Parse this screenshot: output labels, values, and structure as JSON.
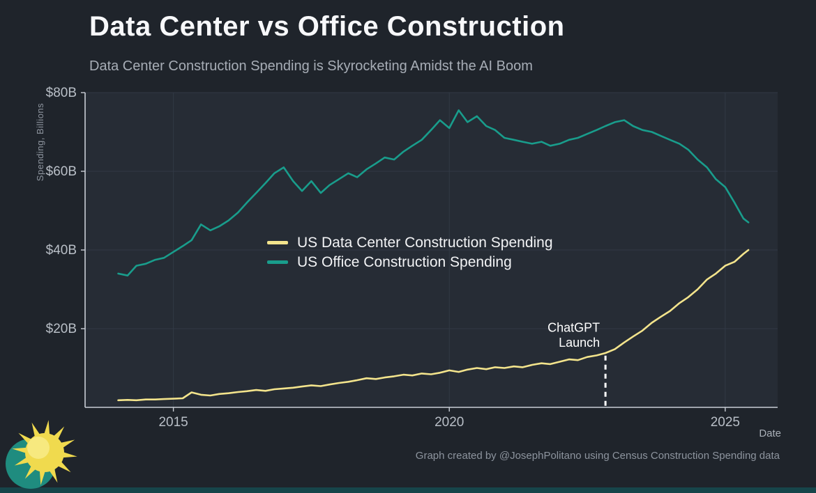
{
  "page": {
    "title": "Data Center vs Office Construction",
    "subtitle": "Data Center Construction Spending is Skyrocketing Amidst the AI Boom",
    "footer": "Graph created by @JosephPolitano using Census Construction Spending data",
    "colors": {
      "background": "#1f242b",
      "plot_background": "#262c35",
      "grid": "#313945",
      "axis": "#c9ced6",
      "tick_text": "#b9bfc7",
      "data_center_line": "#f3e48c",
      "office_line": "#199d8c",
      "annotation": "#ffffff",
      "logo_sun": "#f0da4e",
      "logo_sun_highlight": "#f7e97f",
      "logo_teal": "#1f8c7f"
    }
  },
  "chart_data": {
    "type": "line",
    "title": "Data Center vs Office Construction",
    "subtitle": "Data Center Construction Spending is Skyrocketing Amidst the AI Boom",
    "xlabel": "Date",
    "ylabel": "Spending, Billions",
    "xlim": [
      2013.4,
      2025.95
    ],
    "ylim": [
      0,
      80
    ],
    "grid": true,
    "legend_position": "inside-center-left",
    "x_ticks": [
      {
        "value": 2015,
        "label": "2015"
      },
      {
        "value": 2020,
        "label": "2020"
      },
      {
        "value": 2025,
        "label": "2025"
      }
    ],
    "y_ticks": [
      {
        "value": 20,
        "label": "$20B"
      },
      {
        "value": 40,
        "label": "$40B"
      },
      {
        "value": 60,
        "label": "$60B"
      },
      {
        "value": 80,
        "label": "$80B"
      }
    ],
    "annotation": {
      "label_lines": [
        "ChatGPT",
        "Launch"
      ],
      "x": 2022.83,
      "line_y_bottom": 0.4,
      "line_y_top": 13.6,
      "text_y": [
        19.2,
        15.4
      ]
    },
    "x": [
      2014.0,
      2014.17,
      2014.33,
      2014.5,
      2014.67,
      2014.83,
      2015.0,
      2015.17,
      2015.33,
      2015.5,
      2015.67,
      2015.83,
      2016.0,
      2016.17,
      2016.33,
      2016.5,
      2016.67,
      2016.83,
      2017.0,
      2017.17,
      2017.33,
      2017.5,
      2017.67,
      2017.83,
      2018.0,
      2018.17,
      2018.33,
      2018.5,
      2018.67,
      2018.83,
      2019.0,
      2019.17,
      2019.33,
      2019.5,
      2019.67,
      2019.83,
      2020.0,
      2020.17,
      2020.33,
      2020.5,
      2020.67,
      2020.83,
      2021.0,
      2021.17,
      2021.33,
      2021.5,
      2021.67,
      2021.83,
      2022.0,
      2022.17,
      2022.33,
      2022.5,
      2022.67,
      2022.83,
      2023.0,
      2023.17,
      2023.33,
      2023.5,
      2023.67,
      2023.83,
      2024.0,
      2024.17,
      2024.33,
      2024.5,
      2024.67,
      2024.83,
      2025.0,
      2025.17,
      2025.33,
      2025.42
    ],
    "series": [
      {
        "name": "US Data Center Construction Spending",
        "color": "#f3e48c",
        "values": [
          1.8,
          1.9,
          1.8,
          2.0,
          2.0,
          2.1,
          2.2,
          2.3,
          3.8,
          3.2,
          3.0,
          3.4,
          3.6,
          3.9,
          4.1,
          4.4,
          4.2,
          4.6,
          4.8,
          5.0,
          5.3,
          5.6,
          5.4,
          5.8,
          6.2,
          6.5,
          6.9,
          7.4,
          7.2,
          7.6,
          7.9,
          8.3,
          8.1,
          8.6,
          8.4,
          8.8,
          9.4,
          9.0,
          9.6,
          10.0,
          9.7,
          10.2,
          10.0,
          10.4,
          10.2,
          10.8,
          11.2,
          11.0,
          11.6,
          12.2,
          12.0,
          12.8,
          13.2,
          13.8,
          14.8,
          16.5,
          18.0,
          19.5,
          21.5,
          23.0,
          24.5,
          26.5,
          28.0,
          30.0,
          32.5,
          34.0,
          36.0,
          37.0,
          39.0,
          40.0
        ]
      },
      {
        "name": "US Office Construction Spending",
        "color": "#199d8c",
        "values": [
          34.0,
          33.5,
          36.0,
          36.5,
          37.5,
          38.0,
          39.5,
          41.0,
          42.5,
          46.5,
          45.0,
          46.0,
          47.5,
          49.5,
          52.0,
          54.5,
          57.0,
          59.5,
          61.0,
          57.5,
          55.0,
          57.5,
          54.5,
          56.5,
          58.0,
          59.5,
          58.5,
          60.5,
          62.0,
          63.5,
          63.0,
          65.0,
          66.5,
          68.0,
          70.5,
          73.0,
          71.0,
          75.5,
          72.5,
          74.0,
          71.5,
          70.5,
          68.5,
          68.0,
          67.5,
          67.0,
          67.5,
          66.5,
          67.0,
          68.0,
          68.5,
          69.5,
          70.5,
          71.5,
          72.5,
          73.0,
          71.5,
          70.5,
          70.0,
          69.0,
          68.0,
          67.0,
          65.5,
          63.0,
          61.0,
          58.0,
          56.0,
          52.0,
          48.0,
          47.0
        ]
      }
    ]
  }
}
